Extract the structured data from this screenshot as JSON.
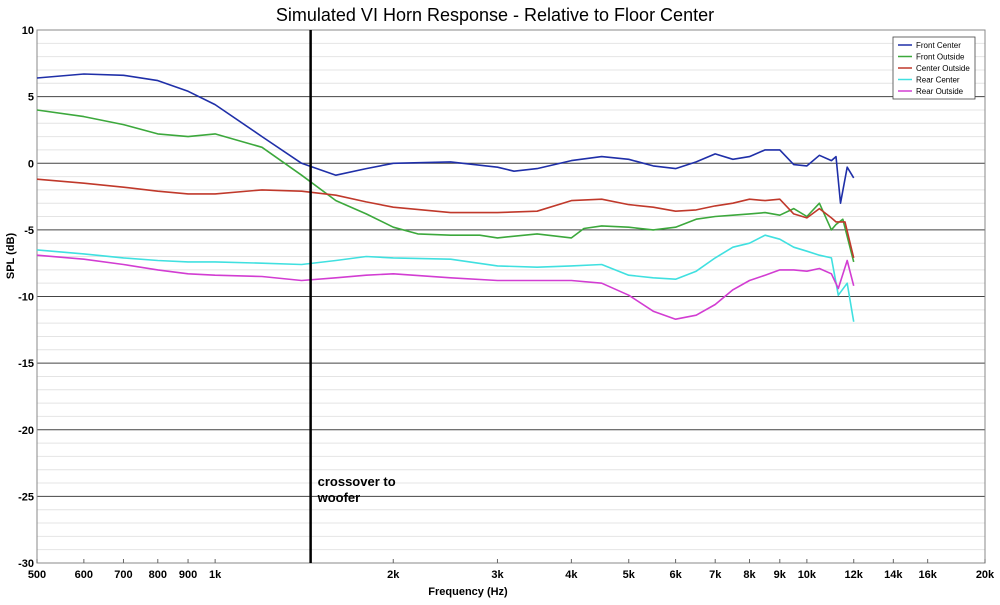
{
  "chart_data": {
    "type": "line",
    "title": "Simulated VI Horn Response - Relative to Floor Center",
    "xlabel": "Frequency (Hz)",
    "ylabel": "SPL (dB)",
    "xscale": "log",
    "xlim": [
      500,
      20000
    ],
    "ylim": [
      -30,
      10
    ],
    "grid": true,
    "legend_position": "top-right",
    "x_ticks": [
      {
        "value": 500,
        "label": "500"
      },
      {
        "value": 600,
        "label": "600"
      },
      {
        "value": 700,
        "label": "700"
      },
      {
        "value": 800,
        "label": "800"
      },
      {
        "value": 900,
        "label": "900"
      },
      {
        "value": 1000,
        "label": "1k"
      },
      {
        "value": 2000,
        "label": "2k"
      },
      {
        "value": 3000,
        "label": "3k"
      },
      {
        "value": 4000,
        "label": "4k"
      },
      {
        "value": 5000,
        "label": "5k"
      },
      {
        "value": 6000,
        "label": "6k"
      },
      {
        "value": 7000,
        "label": "7k"
      },
      {
        "value": 8000,
        "label": "8k"
      },
      {
        "value": 9000,
        "label": "9k"
      },
      {
        "value": 10000,
        "label": "10k"
      },
      {
        "value": 12000,
        "label": "12k"
      },
      {
        "value": 14000,
        "label": "14k"
      },
      {
        "value": 16000,
        "label": "16k"
      },
      {
        "value": 20000,
        "label": "20k"
      }
    ],
    "y_ticks": [
      {
        "value": 10,
        "label": "10"
      },
      {
        "value": 5,
        "label": "5"
      },
      {
        "value": 0,
        "label": "0"
      },
      {
        "value": -5,
        "label": "-5"
      },
      {
        "value": -10,
        "label": "-10"
      },
      {
        "value": -15,
        "label": "-15"
      },
      {
        "value": -20,
        "label": "-20"
      },
      {
        "value": -25,
        "label": "-25"
      },
      {
        "value": -30,
        "label": "-30"
      }
    ],
    "annotation": {
      "text_lines": [
        "crossover to",
        "woofer"
      ],
      "marker_x": 1450
    },
    "series": [
      {
        "name": "Front Center",
        "color": "#1f2fa8",
        "points": [
          [
            500,
            6.4
          ],
          [
            600,
            6.7
          ],
          [
            700,
            6.6
          ],
          [
            800,
            6.2
          ],
          [
            900,
            5.4
          ],
          [
            1000,
            4.4
          ],
          [
            1200,
            2.0
          ],
          [
            1400,
            0.0
          ],
          [
            1600,
            -0.9
          ],
          [
            1800,
            -0.4
          ],
          [
            2000,
            0.0
          ],
          [
            2500,
            0.1
          ],
          [
            3000,
            -0.3
          ],
          [
            3200,
            -0.6
          ],
          [
            3500,
            -0.4
          ],
          [
            4000,
            0.2
          ],
          [
            4500,
            0.5
          ],
          [
            5000,
            0.3
          ],
          [
            5500,
            -0.2
          ],
          [
            6000,
            -0.4
          ],
          [
            6500,
            0.1
          ],
          [
            7000,
            0.7
          ],
          [
            7500,
            0.3
          ],
          [
            8000,
            0.5
          ],
          [
            8500,
            1.0
          ],
          [
            9000,
            1.0
          ],
          [
            9500,
            -0.1
          ],
          [
            10000,
            -0.2
          ],
          [
            10500,
            0.6
          ],
          [
            11000,
            0.2
          ],
          [
            11200,
            0.5
          ],
          [
            11400,
            -3.0
          ],
          [
            11700,
            -0.3
          ],
          [
            12000,
            -1.1
          ]
        ]
      },
      {
        "name": "Front Outside",
        "color": "#3ca83c",
        "points": [
          [
            500,
            4.0
          ],
          [
            600,
            3.5
          ],
          [
            700,
            2.9
          ],
          [
            800,
            2.2
          ],
          [
            900,
            2.0
          ],
          [
            1000,
            2.2
          ],
          [
            1200,
            1.2
          ],
          [
            1400,
            -0.9
          ],
          [
            1600,
            -2.8
          ],
          [
            1800,
            -3.8
          ],
          [
            2000,
            -4.8
          ],
          [
            2200,
            -5.3
          ],
          [
            2500,
            -5.4
          ],
          [
            2800,
            -5.4
          ],
          [
            3000,
            -5.6
          ],
          [
            3500,
            -5.3
          ],
          [
            4000,
            -5.6
          ],
          [
            4200,
            -4.9
          ],
          [
            4500,
            -4.7
          ],
          [
            5000,
            -4.8
          ],
          [
            5500,
            -5.0
          ],
          [
            6000,
            -4.8
          ],
          [
            6500,
            -4.2
          ],
          [
            7000,
            -4.0
          ],
          [
            7500,
            -3.9
          ],
          [
            8000,
            -3.8
          ],
          [
            8500,
            -3.7
          ],
          [
            9000,
            -3.9
          ],
          [
            9500,
            -3.4
          ],
          [
            10000,
            -4.0
          ],
          [
            10500,
            -3.0
          ],
          [
            11000,
            -5.0
          ],
          [
            11200,
            -4.6
          ],
          [
            11500,
            -4.2
          ],
          [
            12000,
            -7.4
          ]
        ]
      },
      {
        "name": "Center Outside",
        "color": "#c0392b",
        "points": [
          [
            500,
            -1.2
          ],
          [
            600,
            -1.5
          ],
          [
            700,
            -1.8
          ],
          [
            800,
            -2.1
          ],
          [
            900,
            -2.3
          ],
          [
            1000,
            -2.3
          ],
          [
            1200,
            -2.0
          ],
          [
            1400,
            -2.1
          ],
          [
            1600,
            -2.4
          ],
          [
            1800,
            -2.9
          ],
          [
            2000,
            -3.3
          ],
          [
            2500,
            -3.7
          ],
          [
            3000,
            -3.7
          ],
          [
            3500,
            -3.6
          ],
          [
            4000,
            -2.8
          ],
          [
            4500,
            -2.7
          ],
          [
            5000,
            -3.1
          ],
          [
            5500,
            -3.3
          ],
          [
            6000,
            -3.6
          ],
          [
            6500,
            -3.5
          ],
          [
            7000,
            -3.2
          ],
          [
            7500,
            -3.0
          ],
          [
            8000,
            -2.7
          ],
          [
            8500,
            -2.8
          ],
          [
            9000,
            -2.7
          ],
          [
            9500,
            -3.8
          ],
          [
            10000,
            -4.1
          ],
          [
            10500,
            -3.4
          ],
          [
            11000,
            -4.1
          ],
          [
            11200,
            -4.4
          ],
          [
            11600,
            -4.4
          ],
          [
            12000,
            -7.1
          ]
        ]
      },
      {
        "name": "Rear Center",
        "color": "#40e0e0",
        "points": [
          [
            500,
            -6.5
          ],
          [
            600,
            -6.8
          ],
          [
            700,
            -7.1
          ],
          [
            800,
            -7.3
          ],
          [
            900,
            -7.4
          ],
          [
            1000,
            -7.4
          ],
          [
            1200,
            -7.5
          ],
          [
            1400,
            -7.6
          ],
          [
            1600,
            -7.3
          ],
          [
            1800,
            -7.0
          ],
          [
            2000,
            -7.1
          ],
          [
            2500,
            -7.2
          ],
          [
            3000,
            -7.7
          ],
          [
            3500,
            -7.8
          ],
          [
            4000,
            -7.7
          ],
          [
            4500,
            -7.6
          ],
          [
            5000,
            -8.4
          ],
          [
            5500,
            -8.6
          ],
          [
            6000,
            -8.7
          ],
          [
            6500,
            -8.1
          ],
          [
            7000,
            -7.1
          ],
          [
            7500,
            -6.3
          ],
          [
            8000,
            -6.0
          ],
          [
            8500,
            -5.4
          ],
          [
            9000,
            -5.7
          ],
          [
            9500,
            -6.3
          ],
          [
            10000,
            -6.6
          ],
          [
            10500,
            -6.9
          ],
          [
            11000,
            -7.1
          ],
          [
            11300,
            -9.9
          ],
          [
            11700,
            -9.0
          ],
          [
            12000,
            -11.9
          ]
        ]
      },
      {
        "name": "Rear Outside",
        "color": "#d23dd2",
        "points": [
          [
            500,
            -6.9
          ],
          [
            600,
            -7.2
          ],
          [
            700,
            -7.6
          ],
          [
            800,
            -8.0
          ],
          [
            900,
            -8.3
          ],
          [
            1000,
            -8.4
          ],
          [
            1200,
            -8.5
          ],
          [
            1400,
            -8.8
          ],
          [
            1600,
            -8.6
          ],
          [
            1800,
            -8.4
          ],
          [
            2000,
            -8.3
          ],
          [
            2500,
            -8.6
          ],
          [
            3000,
            -8.8
          ],
          [
            3500,
            -8.8
          ],
          [
            4000,
            -8.8
          ],
          [
            4500,
            -9.0
          ],
          [
            5000,
            -9.9
          ],
          [
            5500,
            -11.1
          ],
          [
            6000,
            -11.7
          ],
          [
            6500,
            -11.4
          ],
          [
            7000,
            -10.6
          ],
          [
            7500,
            -9.5
          ],
          [
            8000,
            -8.8
          ],
          [
            8500,
            -8.4
          ],
          [
            9000,
            -8.0
          ],
          [
            9500,
            -8.0
          ],
          [
            10000,
            -8.1
          ],
          [
            10500,
            -7.9
          ],
          [
            11000,
            -8.3
          ],
          [
            11300,
            -9.4
          ],
          [
            11700,
            -7.3
          ],
          [
            12000,
            -9.2
          ]
        ]
      }
    ]
  }
}
